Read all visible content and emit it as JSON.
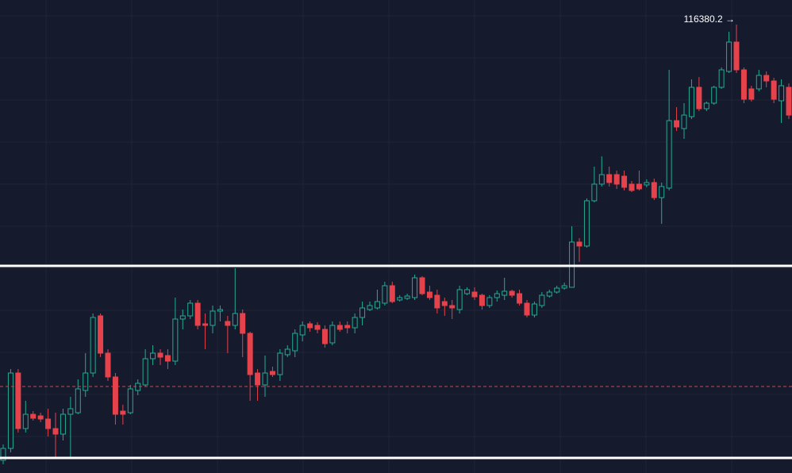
{
  "chart_data": {
    "type": "candlestick",
    "ylim": [
      105080,
      117000
    ],
    "up_color": "#22ab94",
    "down_color": "#e5424b",
    "max_label": "116380.2 →",
    "open": [
      105400,
      105700,
      107600,
      106200,
      106560,
      106520,
      106440,
      106200,
      106060,
      106560,
      106600,
      107160,
      107600,
      109040,
      108100,
      107500,
      106640,
      106600,
      107160,
      107300,
      107960,
      108100,
      108040,
      107900,
      108960,
      109040,
      109360,
      108840,
      108800,
      109160,
      108900,
      108800,
      109100,
      108600,
      107600,
      107300,
      107640,
      107560,
      108060,
      108160,
      108560,
      108840,
      108800,
      108700,
      108360,
      108800,
      108800,
      108740,
      109000,
      109200,
      109240,
      109360,
      109800,
      109440,
      109480,
      109500,
      110000,
      109640,
      109560,
      109400,
      109300,
      109200,
      109600,
      109640,
      109560,
      109300,
      109500,
      109560,
      109660,
      109600,
      109360,
      109060,
      109300,
      109540,
      109640,
      109740,
      109760,
      110900,
      110800,
      111940,
      112360,
      112600,
      112600,
      112560,
      112360,
      112360,
      112340,
      112400,
      112020,
      112260,
      113960,
      113760,
      114060,
      114800,
      114260,
      114400,
      114800,
      115200,
      115940,
      115240,
      114760,
      114760,
      115100,
      114960,
      114460,
      114800
    ],
    "high": [
      105800,
      107700,
      107700,
      106900,
      106640,
      106600,
      106700,
      106600,
      106700,
      107000,
      107440,
      108100,
      109100,
      109100,
      108200,
      107600,
      106800,
      107300,
      107440,
      108200,
      108300,
      108200,
      108200,
      109500,
      109200,
      109440,
      109440,
      109100,
      109300,
      109300,
      109040,
      110240,
      109200,
      108640,
      107700,
      108040,
      107760,
      108200,
      108300,
      108700,
      108900,
      108900,
      108880,
      108800,
      108900,
      108900,
      108900,
      109100,
      109400,
      109400,
      109700,
      109900,
      109900,
      109560,
      109600,
      110080,
      110040,
      109800,
      109700,
      109500,
      109440,
      109800,
      109760,
      109760,
      109600,
      109560,
      109680,
      110000,
      109700,
      109700,
      109440,
      109400,
      109640,
      109700,
      109800,
      109880,
      111300,
      111000,
      112000,
      112800,
      113060,
      112800,
      112700,
      112700,
      112440,
      112700,
      112480,
      112500,
      112400,
      115240,
      114300,
      114400,
      115000,
      115060,
      114440,
      114840,
      115300,
      116200,
      116380.2,
      115300,
      114840,
      115240,
      115200,
      115040,
      115000,
      114900
    ],
    "low": [
      105300,
      105600,
      106100,
      106100,
      106400,
      106360,
      106000,
      105440,
      105900,
      105440,
      106560,
      107000,
      107500,
      108000,
      107400,
      106300,
      106300,
      106560,
      107040,
      107260,
      107800,
      107800,
      107700,
      107800,
      108700,
      108960,
      108700,
      108200,
      108600,
      108900,
      108100,
      108700,
      108000,
      106900,
      106900,
      107000,
      107500,
      107400,
      108000,
      108000,
      108400,
      108640,
      108600,
      108240,
      108300,
      108640,
      108600,
      108600,
      108800,
      109160,
      109200,
      109300,
      109360,
      109400,
      109440,
      109440,
      109560,
      109440,
      109100,
      109040,
      108960,
      109100,
      109560,
      109440,
      109200,
      109240,
      109400,
      109440,
      109500,
      109300,
      109000,
      109000,
      109240,
      109500,
      109600,
      109700,
      109760,
      110400,
      110760,
      111900,
      112300,
      112300,
      112240,
      112200,
      112160,
      112200,
      112280,
      111960,
      111360,
      112200,
      113700,
      113500,
      114000,
      114200,
      114200,
      114360,
      114760,
      115160,
      115160,
      114400,
      114440,
      114700,
      114800,
      114400,
      113900,
      114000
    ],
    "close": [
      105700,
      107600,
      106200,
      106560,
      106460,
      106440,
      106200,
      106060,
      106560,
      106700,
      107200,
      107600,
      109000,
      108100,
      107500,
      106560,
      106560,
      107200,
      107340,
      107960,
      108100,
      108000,
      107900,
      108960,
      109040,
      109360,
      108800,
      108800,
      109160,
      109200,
      108800,
      109100,
      108600,
      107560,
      107300,
      107600,
      107560,
      108100,
      108200,
      108600,
      108800,
      108740,
      108700,
      108340,
      108800,
      108700,
      108740,
      109000,
      109240,
      109300,
      109400,
      109800,
      109400,
      109500,
      109540,
      110000,
      109600,
      109500,
      109240,
      109300,
      109240,
      109700,
      109700,
      109520,
      109300,
      109500,
      109600,
      109660,
      109560,
      109360,
      109060,
      109340,
      109560,
      109640,
      109740,
      109800,
      110900,
      110800,
      111940,
      112360,
      112600,
      112400,
      112360,
      112280,
      112200,
      112240,
      112400,
      112020,
      112300,
      113960,
      113800,
      114100,
      114800,
      114260,
      114400,
      114800,
      115240,
      115940,
      115240,
      114500,
      114500,
      115100,
      114960,
      114500,
      114840,
      114100
    ]
  }
}
